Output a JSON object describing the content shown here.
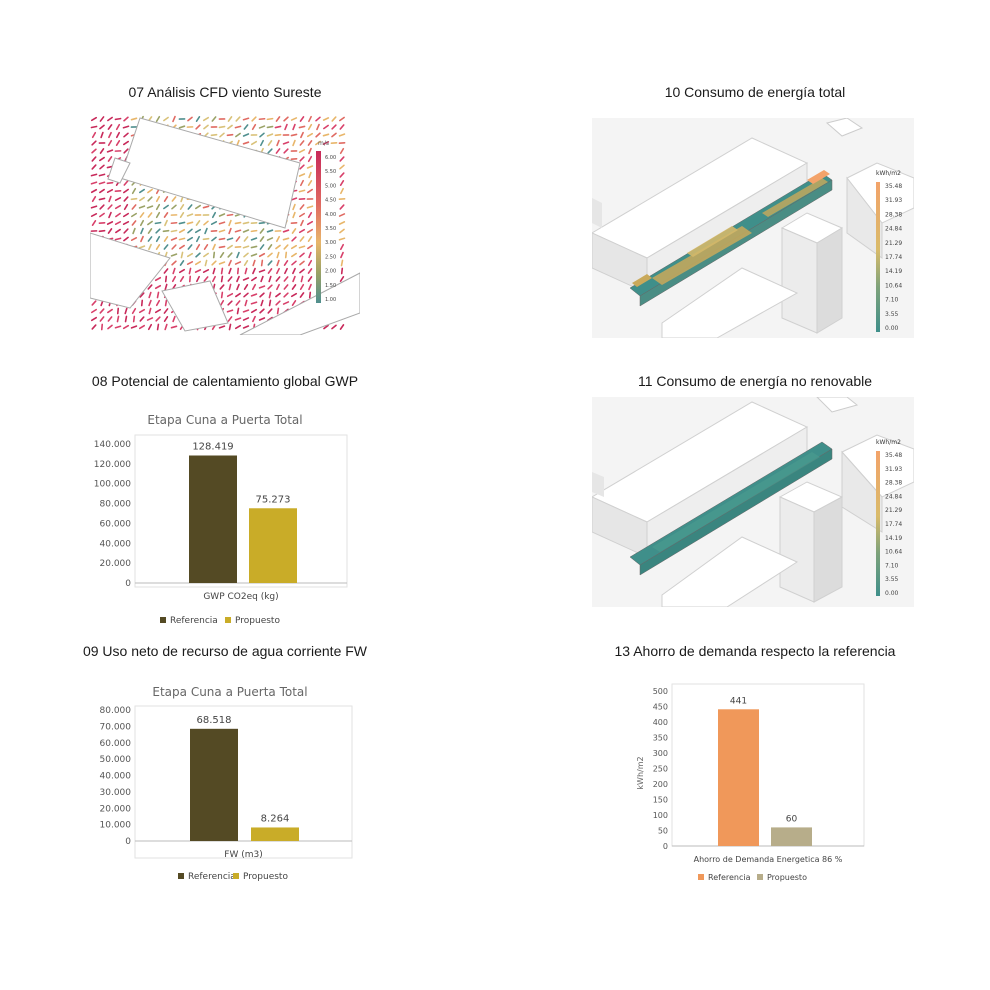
{
  "titles": {
    "cfd": "07 Análisis CFD viento Sureste",
    "gwp": "08 Potencial de calentamiento global GWP",
    "fw": "09 Uso neto de recurso de agua corriente FW",
    "energy_total": "10 Consumo de energía total",
    "energy_nonrenewable": "11 Consumo de energía no renovable",
    "savings": "13 Ahorro de demanda respecto la referencia"
  },
  "colors": {
    "referencia_dark": "#544a24",
    "propuesto_gold": "#c9ac28",
    "referencia_orange": "#f0985a",
    "propuesto_beige": "#b7ad8a",
    "wind_high": "#c8295a",
    "wind_mid": "#e8b66a",
    "wind_low": "#4f8f8e",
    "energy_teal": "#3f8f8a",
    "energy_orange": "#f3a36a"
  },
  "cfd_legend": {
    "unit": "m/s",
    "ticks": [
      "6.00",
      "5.50",
      "5.00",
      "4.50",
      "4.00",
      "3.50",
      "3.00",
      "2.50",
      "2.00",
      "1.50",
      "1.00"
    ]
  },
  "energy_legend_total": {
    "unit": "kWh/m2",
    "ticks": [
      "35.48",
      "31.93",
      "28.38",
      "24.84",
      "21.29",
      "17.74",
      "14.19",
      "10.64",
      "7.10",
      "3.55",
      "0.00"
    ]
  },
  "energy_legend_nonrenewable": {
    "unit": "kWh/m2",
    "ticks": [
      "35.48",
      "31.93",
      "28.38",
      "24.84",
      "21.29",
      "17.74",
      "14.19",
      "10.64",
      "7.10",
      "3.55",
      "0.00"
    ]
  },
  "chart_data": [
    {
      "type": "bar",
      "title": "Etapa Cuna a Puerta Total",
      "xlabel": "GWP CO2eq (kg)",
      "categories": [
        "GWP CO2eq (kg)"
      ],
      "series": [
        {
          "name": "Referencia",
          "values": [
            128419
          ],
          "label": "128.419"
        },
        {
          "name": "Propuesto",
          "values": [
            75273
          ],
          "label": "75.273"
        }
      ],
      "ylim": [
        0,
        140000
      ],
      "yticks": [
        0,
        20000,
        40000,
        60000,
        80000,
        100000,
        120000,
        140000
      ],
      "ytick_labels": [
        "0",
        "20.000",
        "40.000",
        "60.000",
        "80.000",
        "100.000",
        "120.000",
        "140.000"
      ],
      "legend": "bottom"
    },
    {
      "type": "bar",
      "title": "Etapa Cuna a Puerta Total",
      "xlabel": "FW (m3)",
      "categories": [
        "FW (m3)"
      ],
      "series": [
        {
          "name": "Referencia",
          "values": [
            68518
          ],
          "label": "68.518"
        },
        {
          "name": "Propuesto",
          "values": [
            8264
          ],
          "label": "8.264"
        }
      ],
      "ylim": [
        0,
        80000
      ],
      "yticks": [
        0,
        10000,
        20000,
        30000,
        40000,
        50000,
        60000,
        70000,
        80000
      ],
      "ytick_labels": [
        "0",
        "10.000",
        "20.000",
        "30.000",
        "40.000",
        "50.000",
        "60.000",
        "70.000",
        "80.000"
      ],
      "legend": "bottom"
    },
    {
      "type": "bar",
      "title": "",
      "xlabel": "Ahorro de Demanda Energetica 86 %",
      "ylabel": "kWh/m2",
      "categories": [
        "Ahorro de Demanda Energetica 86 %"
      ],
      "series": [
        {
          "name": "Referencia",
          "values": [
            441
          ],
          "label": "441"
        },
        {
          "name": "Propuesto",
          "values": [
            60
          ],
          "label": "60"
        }
      ],
      "ylim": [
        0,
        500
      ],
      "yticks": [
        0,
        50,
        100,
        150,
        200,
        250,
        300,
        350,
        400,
        450,
        500
      ],
      "ytick_labels": [
        "0",
        "50",
        "100",
        "150",
        "200",
        "250",
        "300",
        "350",
        "400",
        "450",
        "500"
      ],
      "legend": "bottom"
    }
  ]
}
